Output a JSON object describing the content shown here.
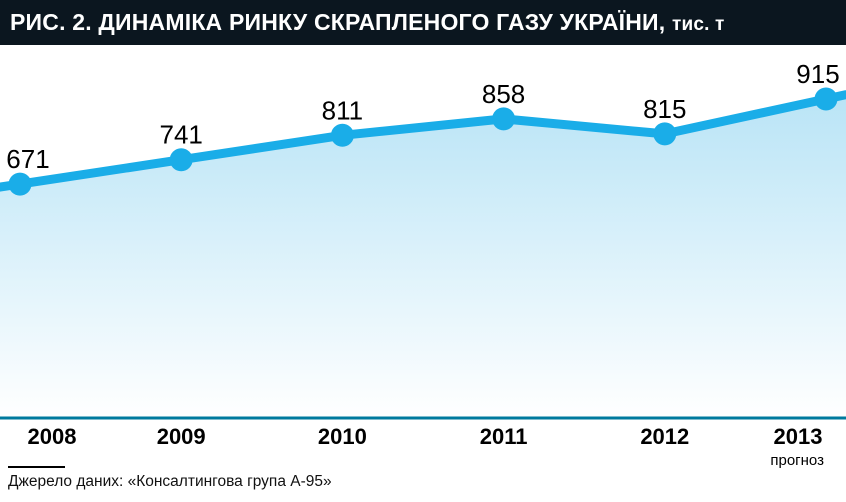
{
  "header": {
    "title_main": "РИС. 2. ДИНАМІКА РИНКУ СКРАПЛЕНОГО ГАЗУ УКРАЇНИ,",
    "title_unit": "тис. т"
  },
  "chart_data": {
    "type": "area",
    "title": "РИС. 2. Динаміка ринку скрапленого газу України, тис. т",
    "categories": [
      "2008",
      "2009",
      "2010",
      "2011",
      "2012",
      "2013"
    ],
    "values": [
      671,
      741,
      811,
      858,
      815,
      915
    ],
    "xlabel": "",
    "ylabel": "тис. т",
    "ylim": [
      0,
      1070
    ],
    "grid": false,
    "legend": "none",
    "last_category_note": "прогноз",
    "colors": {
      "line": "#1aade8",
      "marker": "#1aade8",
      "area_top": "#b9e4f6",
      "area_bottom": "#ffffff",
      "baseline": "#007a9e",
      "header_bg": "#0b161f",
      "header_text": "#ffffff",
      "label_text": "#000000"
    }
  },
  "footer": {
    "source": "Джерело даних: «Консалтингова група А-95»"
  }
}
